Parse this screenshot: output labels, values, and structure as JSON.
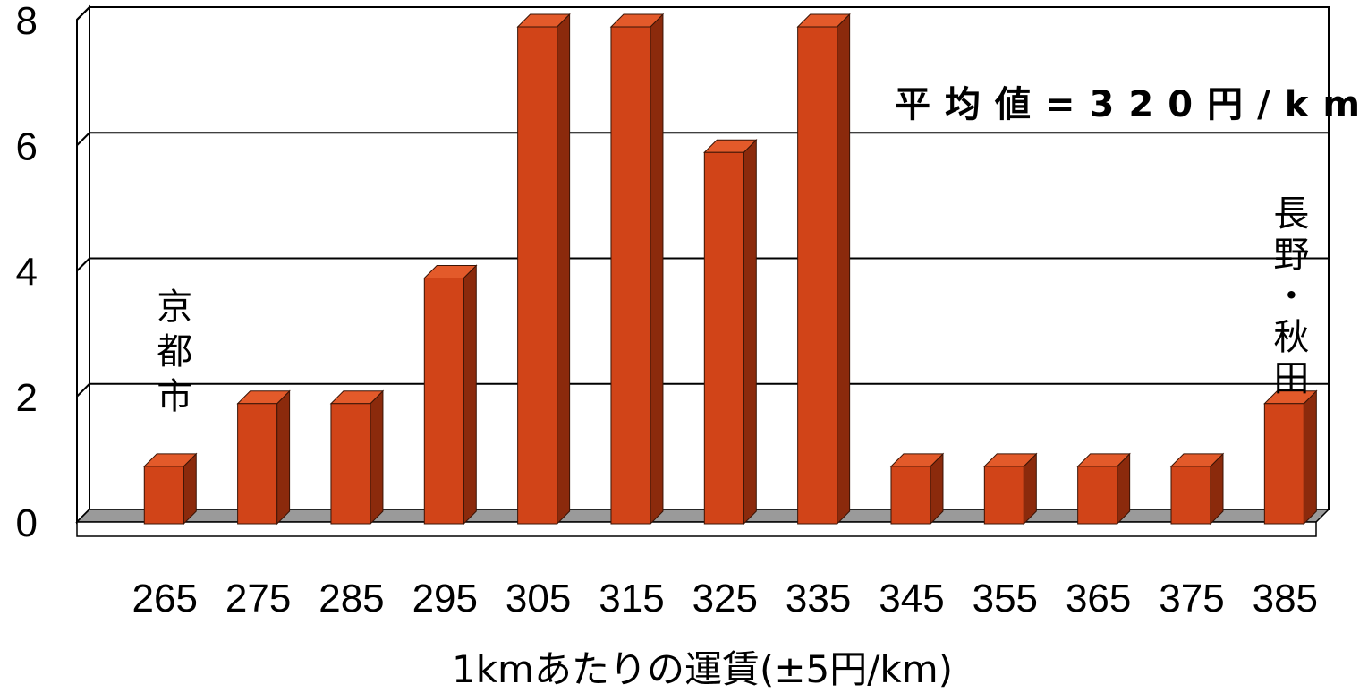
{
  "chart_data": {
    "type": "bar",
    "style": "3d-column",
    "title": "",
    "xlabel": "1kmあたりの運賃(±5円/km)",
    "ylabel": "",
    "categories": [
      "265",
      "275",
      "285",
      "295",
      "305",
      "315",
      "325",
      "335",
      "345",
      "355",
      "365",
      "375",
      "385"
    ],
    "values": [
      1,
      2,
      2,
      4,
      8,
      8,
      6,
      8,
      1,
      1,
      1,
      1,
      2
    ],
    "ylim": [
      0,
      8
    ],
    "yticks": [
      "0",
      "2",
      "4",
      "6",
      "8"
    ],
    "grid": true,
    "legend": "none",
    "colors": {
      "bar_front": "#D14418",
      "bar_side": "#8B2A0C",
      "bar_top": "#E35A2A",
      "floor": "#9A9A9A",
      "grid": "#000000"
    },
    "annotations": [
      {
        "text": "平均値=320円/km"
      },
      {
        "text": "京都市",
        "category": "265"
      },
      {
        "text": "長野・秋田",
        "category": "385"
      }
    ]
  }
}
